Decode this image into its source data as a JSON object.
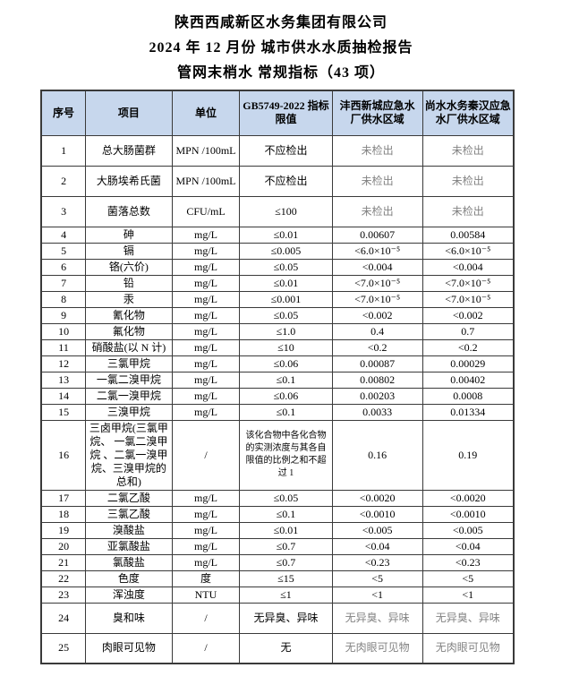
{
  "page": {
    "title_lines": [
      "陕西西咸新区水务集团有限公司",
      "2024 年 12 月份  城市供水水质抽检报告",
      "管网末梢水  常规指标（43 项）"
    ]
  },
  "colors": {
    "header_bg": "#c7d7ed",
    "muted_text": "#828282",
    "border": "#3a3a3a"
  },
  "table": {
    "headers": [
      "序号",
      "项目",
      "单位",
      "GB5749-2022 指标限值",
      "沣西新城应急水厂供水区域",
      "尚水水务秦汉应急水厂供水区域"
    ],
    "rows": [
      {
        "seq": "1",
        "item": "总大肠菌群",
        "unit": "MPN /100mL",
        "limit": "不应检出",
        "v1": "未检出",
        "v2": "未检出",
        "muted": true
      },
      {
        "seq": "2",
        "item": "大肠埃希氏菌",
        "unit": "MPN /100mL",
        "limit": "不应检出",
        "v1": "未检出",
        "v2": "未检出",
        "muted": true
      },
      {
        "seq": "3",
        "item": "菌落总数",
        "unit": "CFU/mL",
        "limit": "≤100",
        "v1": "未检出",
        "v2": "未检出",
        "muted": true
      },
      {
        "seq": "4",
        "item": "砷",
        "unit": "mg/L",
        "limit": "≤0.01",
        "v1": "0.00607",
        "v2": "0.00584",
        "muted": false
      },
      {
        "seq": "5",
        "item": "镉",
        "unit": "mg/L",
        "limit": "≤0.005",
        "v1": "<6.0×10⁻⁵",
        "v2": "<6.0×10⁻⁵",
        "muted": false
      },
      {
        "seq": "6",
        "item": "铬(六价)",
        "unit": "mg/L",
        "limit": "≤0.05",
        "v1": "<0.004",
        "v2": "<0.004",
        "muted": false
      },
      {
        "seq": "7",
        "item": "铅",
        "unit": "mg/L",
        "limit": "≤0.01",
        "v1": "<7.0×10⁻⁵",
        "v2": "<7.0×10⁻⁵",
        "muted": false
      },
      {
        "seq": "8",
        "item": "汞",
        "unit": "mg/L",
        "limit": "≤0.001",
        "v1": "<7.0×10⁻⁵",
        "v2": "<7.0×10⁻⁵",
        "muted": false
      },
      {
        "seq": "9",
        "item": "氰化物",
        "unit": "mg/L",
        "limit": "≤0.05",
        "v1": "<0.002",
        "v2": "<0.002",
        "muted": false
      },
      {
        "seq": "10",
        "item": "氟化物",
        "unit": "mg/L",
        "limit": "≤1.0",
        "v1": "0.4",
        "v2": "0.7",
        "muted": false
      },
      {
        "seq": "11",
        "item": "硝酸盐(以 N 计)",
        "unit": "mg/L",
        "limit": "≤10",
        "v1": "<0.2",
        "v2": "<0.2",
        "muted": false
      },
      {
        "seq": "12",
        "item": "三氯甲烷",
        "unit": "mg/L",
        "limit": "≤0.06",
        "v1": "0.00087",
        "v2": "0.00029",
        "muted": false
      },
      {
        "seq": "13",
        "item": "一氯二溴甲烷",
        "unit": "mg/L",
        "limit": "≤0.1",
        "v1": "0.00802",
        "v2": "0.00402",
        "muted": false
      },
      {
        "seq": "14",
        "item": "二氯一溴甲烷",
        "unit": "mg/L",
        "limit": "≤0.06",
        "v1": "0.00203",
        "v2": "0.0008",
        "muted": false
      },
      {
        "seq": "15",
        "item": "三溴甲烷",
        "unit": "mg/L",
        "limit": "≤0.1",
        "v1": "0.0033",
        "v2": "0.01334",
        "muted": false
      },
      {
        "seq": "16",
        "item": "三卤甲烷(三氯甲烷、 一氯二溴甲烷 、二氯一溴甲烷、三溴甲烷的总和)",
        "unit": "/",
        "limit": "该化合物中各化合物的实测浓度与其各自限值的比例之和不超过 1",
        "v1": "0.16",
        "v2": "0.19",
        "muted": false
      },
      {
        "seq": "17",
        "item": "二氯乙酸",
        "unit": "mg/L",
        "limit": "≤0.05",
        "v1": "<0.0020",
        "v2": "<0.0020",
        "muted": false
      },
      {
        "seq": "18",
        "item": "三氯乙酸",
        "unit": "mg/L",
        "limit": "≤0.1",
        "v1": "<0.0010",
        "v2": "<0.0010",
        "muted": false
      },
      {
        "seq": "19",
        "item": "溴酸盐",
        "unit": "mg/L",
        "limit": "≤0.01",
        "v1": "<0.005",
        "v2": "<0.005",
        "muted": false
      },
      {
        "seq": "20",
        "item": "亚氯酸盐",
        "unit": "mg/L",
        "limit": "≤0.7",
        "v1": "<0.04",
        "v2": "<0.04",
        "muted": false
      },
      {
        "seq": "21",
        "item": "氯酸盐",
        "unit": "mg/L",
        "limit": "≤0.7",
        "v1": "<0.23",
        "v2": "<0.23",
        "muted": false
      },
      {
        "seq": "22",
        "item": "色度",
        "unit": "度",
        "limit": "≤15",
        "v1": "<5",
        "v2": "<5",
        "muted": false
      },
      {
        "seq": "23",
        "item": "浑浊度",
        "unit": "NTU",
        "limit": "≤1",
        "v1": "<1",
        "v2": "<1",
        "muted": false
      },
      {
        "seq": "24",
        "item": "臭和味",
        "unit": "/",
        "limit": "无异臭、异味",
        "v1": "无异臭、异味",
        "v2": "无异臭、异味",
        "muted": true
      },
      {
        "seq": "25",
        "item": "肉眼可见物",
        "unit": "/",
        "limit": "无",
        "v1": "无肉眼可见物",
        "v2": "无肉眼可见物",
        "muted": true
      }
    ]
  }
}
